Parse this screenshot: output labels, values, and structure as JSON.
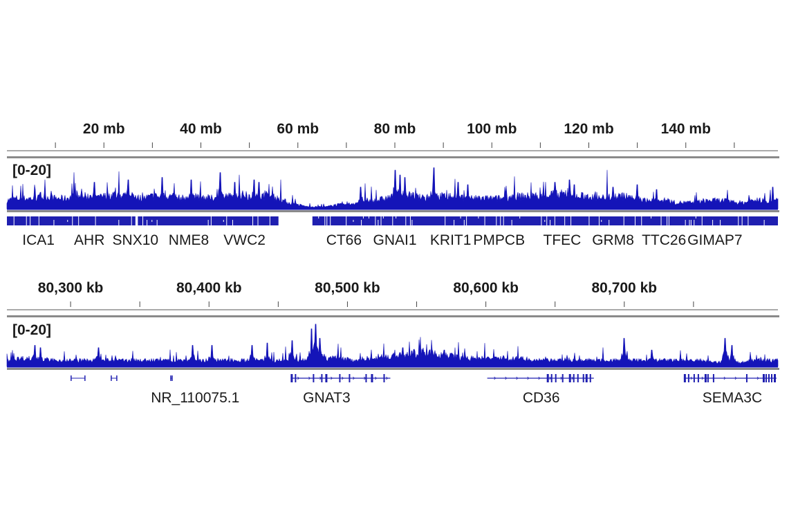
{
  "colors": {
    "signal": "#1414b8",
    "gene": "#1f1fb0",
    "divider": "#8a8a8a",
    "text": "#1a1a1a"
  },
  "chart_data": [
    {
      "type": "area",
      "view": "chromosome",
      "x_unit": "mb",
      "xlim": [
        0,
        159
      ],
      "ylim": [
        0,
        20
      ],
      "data_range_label": "[0-20]",
      "ticks": [
        {
          "value": 20,
          "label": "20 mb"
        },
        {
          "value": 40,
          "label": "40 mb"
        },
        {
          "value": 60,
          "label": "60 mb"
        },
        {
          "value": 80,
          "label": "80 mb"
        },
        {
          "value": 100,
          "label": "100 mb"
        },
        {
          "value": 120,
          "label": "120 mb"
        },
        {
          "value": 140,
          "label": "140 mb"
        }
      ],
      "minor_ticks": [
        10,
        30,
        50,
        70,
        90,
        110,
        130,
        150
      ],
      "baseline_profile_mb_step": 2,
      "baseline_profile": [
        4,
        5,
        5,
        5,
        6,
        5,
        5,
        6,
        6,
        5,
        6,
        7,
        6,
        6,
        5,
        6,
        6,
        6,
        5,
        6,
        6,
        5,
        6,
        6,
        7,
        6,
        6,
        6,
        5,
        3,
        2,
        1,
        1,
        1,
        2,
        2,
        3,
        4,
        4,
        5,
        6,
        7,
        6,
        5,
        6,
        6,
        6,
        5,
        5,
        5,
        5,
        5,
        6,
        6,
        6,
        6,
        7,
        7,
        7,
        6,
        6,
        5,
        6,
        6,
        6,
        5,
        4,
        4,
        4,
        3,
        3,
        3,
        4,
        4,
        4,
        3,
        3,
        4,
        4,
        4
      ],
      "peaks": [
        [
          18,
          11
        ],
        [
          25,
          12
        ],
        [
          32,
          13
        ],
        [
          38,
          12
        ],
        [
          44,
          15
        ],
        [
          47,
          11
        ],
        [
          51,
          12
        ],
        [
          52,
          11
        ],
        [
          73,
          9
        ],
        [
          80,
          16
        ],
        [
          81,
          14
        ],
        [
          82,
          13
        ],
        [
          88,
          17
        ],
        [
          93,
          11
        ],
        [
          95,
          10
        ],
        [
          113,
          11
        ],
        [
          116,
          12
        ],
        [
          117,
          10
        ],
        [
          125,
          9
        ],
        [
          130,
          10
        ],
        [
          134,
          8
        ],
        [
          158,
          9
        ]
      ],
      "gene_blocks_mb": [
        [
          0,
          26.5
        ],
        [
          27,
          56
        ],
        [
          63,
          159
        ]
      ],
      "genes": [
        {
          "name": "ICA1",
          "pos": 6.5
        },
        {
          "name": "AHR",
          "pos": 17
        },
        {
          "name": "SNX10",
          "pos": 26.5
        },
        {
          "name": "NME8",
          "pos": 37.5
        },
        {
          "name": "VWC2",
          "pos": 49
        },
        {
          "name": "CT66",
          "pos": 69.5
        },
        {
          "name": "GNAI1",
          "pos": 80
        },
        {
          "name": "KRIT1",
          "pos": 91.5
        },
        {
          "name": "PMPCB",
          "pos": 101.5
        },
        {
          "name": "TFEC",
          "pos": 114.5
        },
        {
          "name": "GRM8",
          "pos": 125
        },
        {
          "name": "TTC26",
          "pos": 135.5
        },
        {
          "name": "GIMAP7",
          "pos": 146
        }
      ]
    },
    {
      "type": "area",
      "view": "region",
      "x_unit": "kb",
      "xlim": [
        80254,
        80811
      ],
      "ylim": [
        0,
        20
      ],
      "data_range_label": "[0-20]",
      "ticks": [
        {
          "value": 80300,
          "label": "80,300 kb"
        },
        {
          "value": 80400,
          "label": "80,400 kb"
        },
        {
          "value": 80500,
          "label": "80,500 kb"
        },
        {
          "value": 80600,
          "label": "80,600 kb"
        },
        {
          "value": 80700,
          "label": "80,700 kb"
        }
      ],
      "minor_ticks": [
        80350,
        80450,
        80550,
        80650,
        80750
      ],
      "baseline_profile_kb_step": 10,
      "baseline_profile": [
        3,
        4,
        4,
        3,
        3,
        3,
        3,
        3,
        3,
        3,
        3,
        3,
        3,
        3,
        3,
        3,
        3,
        3,
        3,
        3,
        3,
        3,
        4,
        4,
        4,
        3,
        4,
        5,
        5,
        6,
        7,
        6,
        5,
        4,
        4,
        4,
        4,
        4,
        3,
        3,
        3,
        3,
        3,
        3,
        3,
        3,
        3,
        3,
        3,
        3,
        3,
        2,
        2,
        2,
        3,
        3,
        3,
        4,
        3,
        5,
        5,
        4,
        4,
        3,
        3,
        3
      ],
      "peaks": [
        [
          80274,
          9
        ],
        [
          80278,
          8
        ],
        [
          80320,
          8
        ],
        [
          80388,
          9
        ],
        [
          80402,
          9
        ],
        [
          80431,
          9
        ],
        [
          80442,
          10
        ],
        [
          80460,
          11
        ],
        [
          80474,
          16
        ],
        [
          80477,
          18
        ],
        [
          80480,
          12
        ],
        [
          80540,
          8
        ],
        [
          80570,
          7
        ],
        [
          80700,
          12
        ],
        [
          80720,
          7
        ],
        [
          80773,
          12
        ],
        [
          80778,
          9
        ]
      ],
      "genes": [
        {
          "name": "NR_110075.1",
          "pos": 80390,
          "features": [
            [
              80300,
              80310
            ],
            [
              80329,
              80333
            ],
            [
              80372,
              80373
            ]
          ]
        },
        {
          "name": "GNAT3",
          "pos": 80485,
          "start": 80459,
          "end": 80531,
          "exons": [
            80459,
            80462,
            80475,
            80481,
            80484,
            80494,
            80501,
            80513,
            80517,
            80526
          ]
        },
        {
          "name": "CD36",
          "pos": 80640,
          "start": 80601,
          "end": 80678,
          "exons": [
            80644,
            80647,
            80650,
            80655,
            80660,
            80663,
            80666,
            80670,
            80672,
            80675
          ]
        },
        {
          "name": "SEMA3C",
          "pos": 80778,
          "start": 80743,
          "end": 80810,
          "exons": [
            80743,
            80746,
            80750,
            80753,
            80758,
            80760,
            80764,
            80788,
            80800,
            80802,
            80804,
            80806,
            80808
          ]
        }
      ]
    }
  ]
}
